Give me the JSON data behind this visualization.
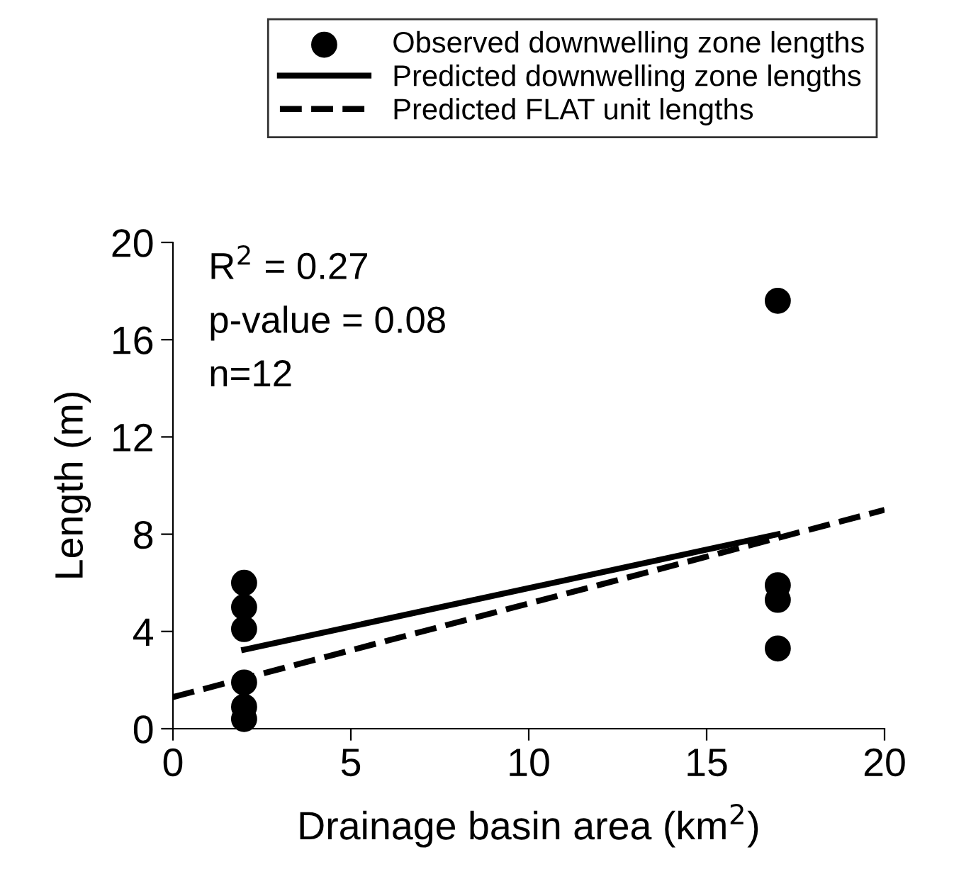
{
  "chart_data": {
    "type": "scatter",
    "xlabel": "Drainage basin area (km$^{2}$)",
    "ylabel": "Length (m)",
    "xlim": [
      0,
      20
    ],
    "xticks": [
      0,
      5,
      10,
      15,
      20
    ],
    "ylim": [
      0,
      20
    ],
    "yticks": [
      0,
      4,
      8,
      12,
      16,
      20
    ],
    "grid": false,
    "legend": "top",
    "annotations": [
      "R$^{2}$ = 0.27",
      "p-value = 0.08",
      "n=12"
    ],
    "series": [
      {
        "name": "Observed downwelling zone lengths",
        "marker": "circle",
        "color": "#000000",
        "x": [
          2,
          2,
          2,
          2,
          2,
          2,
          17,
          17,
          17,
          17
        ],
        "values": [
          6.0,
          5.0,
          4.1,
          1.9,
          0.9,
          0.4,
          17.6,
          5.9,
          5.3,
          3.3
        ]
      },
      {
        "name": "Predicted downwelling zone lengths",
        "type": "line",
        "line_style": "solid",
        "color": "#000000",
        "x": [
          2,
          17
        ],
        "values": [
          3.25,
          8.0
        ]
      },
      {
        "name": "Predicted FLAT unit lengths",
        "type": "line",
        "line_style": "dashed",
        "color": "#000000",
        "x": [
          0,
          20
        ],
        "values": [
          1.3,
          9.0
        ]
      }
    ]
  }
}
